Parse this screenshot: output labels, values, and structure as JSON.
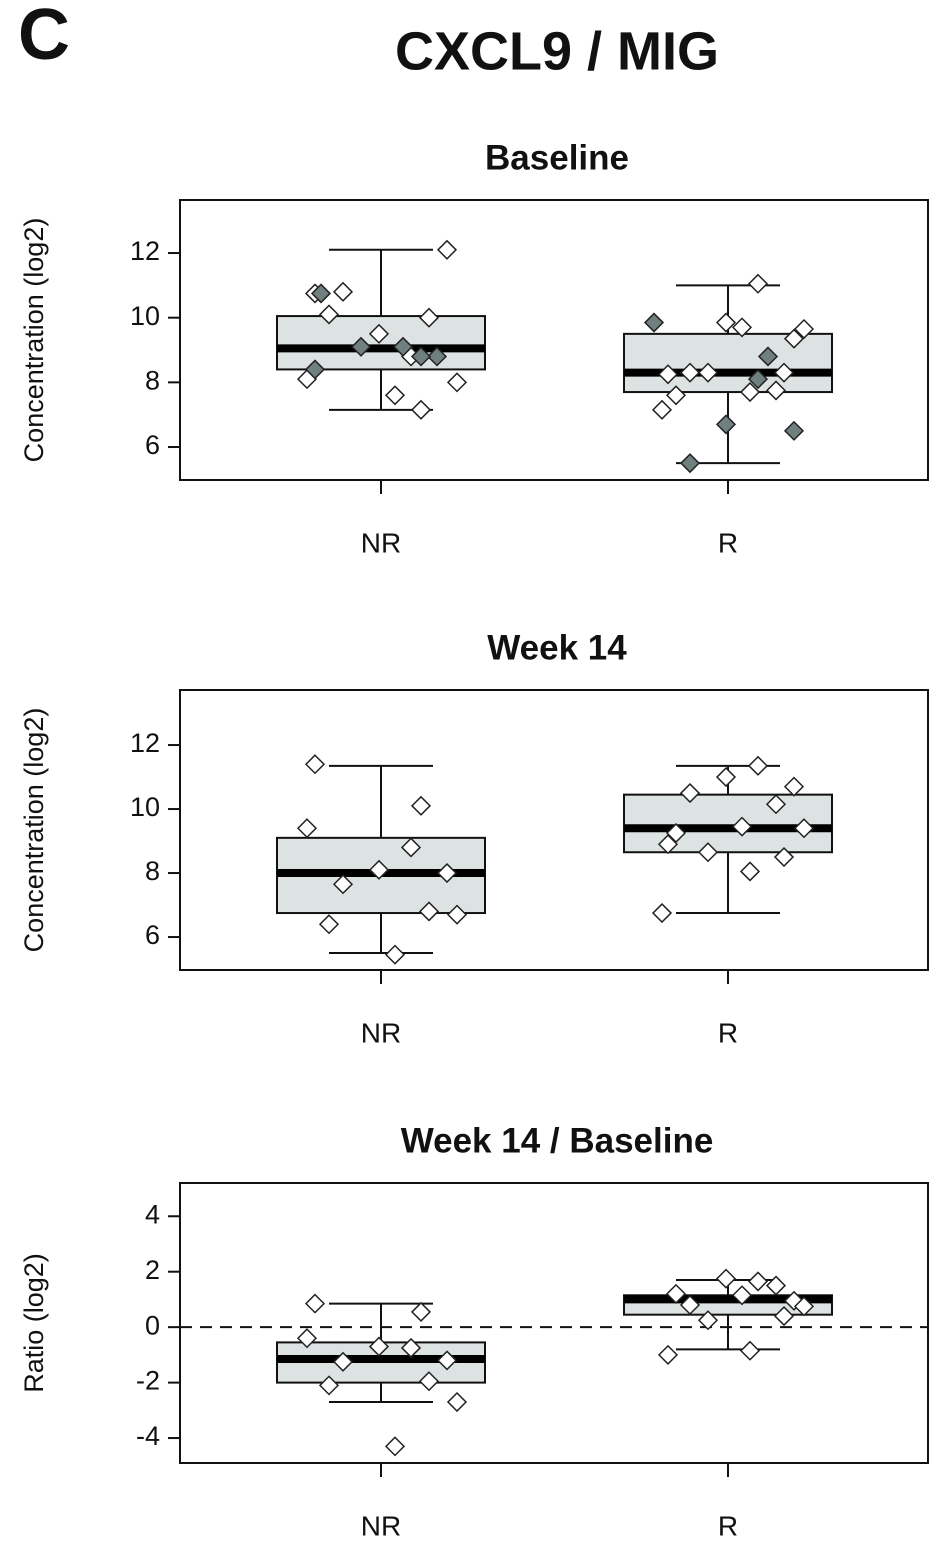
{
  "panel_label": "C",
  "title": "CXCL9 / MIG",
  "chart_data": [
    {
      "type": "box",
      "title": "Baseline",
      "y_label": "Concentration (log2)",
      "categories": [
        "NR",
        "R"
      ],
      "ylim": [
        4.98,
        13.64
      ],
      "yticks": [
        6,
        8,
        10,
        12
      ],
      "box_color": "#dde3e2",
      "boxes": [
        {
          "whisker_low": 7.15,
          "q1": 8.4,
          "median": 9.05,
          "q3": 10.05,
          "whisker_high": 12.1
        },
        {
          "whisker_low": 5.5,
          "q1": 7.7,
          "median": 8.3,
          "q3": 9.5,
          "whisker_high": 11.0
        }
      ],
      "points": [
        [
          {
            "color": "#ffffff",
            "values": [
              10.75,
              7.15,
              8.1,
              8.8,
              9.5,
              12.1,
              10.8,
              10.0,
              10.1,
              8.0,
              7.6
            ]
          },
          {
            "color": "#6f807e",
            "values": [
              9.1,
              8.8,
              10.75,
              9.1,
              8.4,
              8.8
            ]
          }
        ],
        [
          {
            "color": "#ffffff",
            "values": [
              11.05,
              9.85,
              9.35,
              8.3,
              7.75,
              7.6,
              9.65,
              9.7,
              8.3,
              8.3,
              8.25,
              7.7,
              7.15
            ]
          },
          {
            "color": "#6f807e",
            "values": [
              8.8,
              9.85,
              8.1,
              6.7,
              6.5,
              5.5
            ]
          }
        ]
      ]
    },
    {
      "type": "box",
      "title": "Week 14",
      "y_label": "Concentration (log2)",
      "categories": [
        "NR",
        "R"
      ],
      "ylim": [
        4.97,
        13.72
      ],
      "yticks": [
        6,
        8,
        10,
        12
      ],
      "box_color": "#dde3e2",
      "boxes": [
        {
          "whisker_low": 5.5,
          "q1": 6.75,
          "median": 8.0,
          "q3": 9.1,
          "whisker_high": 11.35
        },
        {
          "whisker_low": 6.75,
          "q1": 8.65,
          "median": 9.4,
          "q3": 10.45,
          "whisker_high": 11.35
        }
      ],
      "points": [
        [
          {
            "color": "#ffffff",
            "values": [
              11.4,
              10.1,
              9.4,
              8.8,
              8.1,
              8.0,
              7.65,
              6.8,
              6.4,
              6.7,
              5.45
            ]
          }
        ],
        [
          {
            "color": "#ffffff",
            "values": [
              11.35,
              11.0,
              10.7,
              10.5,
              10.15,
              9.25,
              9.4,
              9.45,
              8.65,
              8.5,
              8.9,
              8.05,
              6.75
            ]
          }
        ]
      ]
    },
    {
      "type": "box",
      "title": "Week 14 / Baseline",
      "y_label": "Ratio (log2)",
      "categories": [
        "NR",
        "R"
      ],
      "ylim": [
        -4.9,
        5.2
      ],
      "yticks": [
        -4,
        -2,
        0,
        2,
        4
      ],
      "box_color": "#dde3e2",
      "hline": 0,
      "boxes": [
        {
          "whisker_low": -2.7,
          "q1": -2.0,
          "median": -1.15,
          "q3": -0.55,
          "whisker_high": 0.85
        },
        {
          "whisker_low": -0.8,
          "q1": 0.45,
          "median": 1.0,
          "q3": 1.15,
          "whisker_high": 1.7
        }
      ],
      "points": [
        [
          {
            "color": "#ffffff",
            "values": [
              0.85,
              0.55,
              -0.4,
              -0.75,
              -0.7,
              -1.2,
              -1.25,
              -1.95,
              -2.1,
              -2.7,
              -4.3
            ]
          }
        ],
        [
          {
            "color": "#ffffff",
            "values": [
              1.65,
              1.75,
              0.95,
              0.8,
              1.5,
              1.2,
              0.75,
              1.15,
              0.25,
              0.4,
              -1.0,
              -0.85
            ]
          }
        ]
      ]
    }
  ]
}
